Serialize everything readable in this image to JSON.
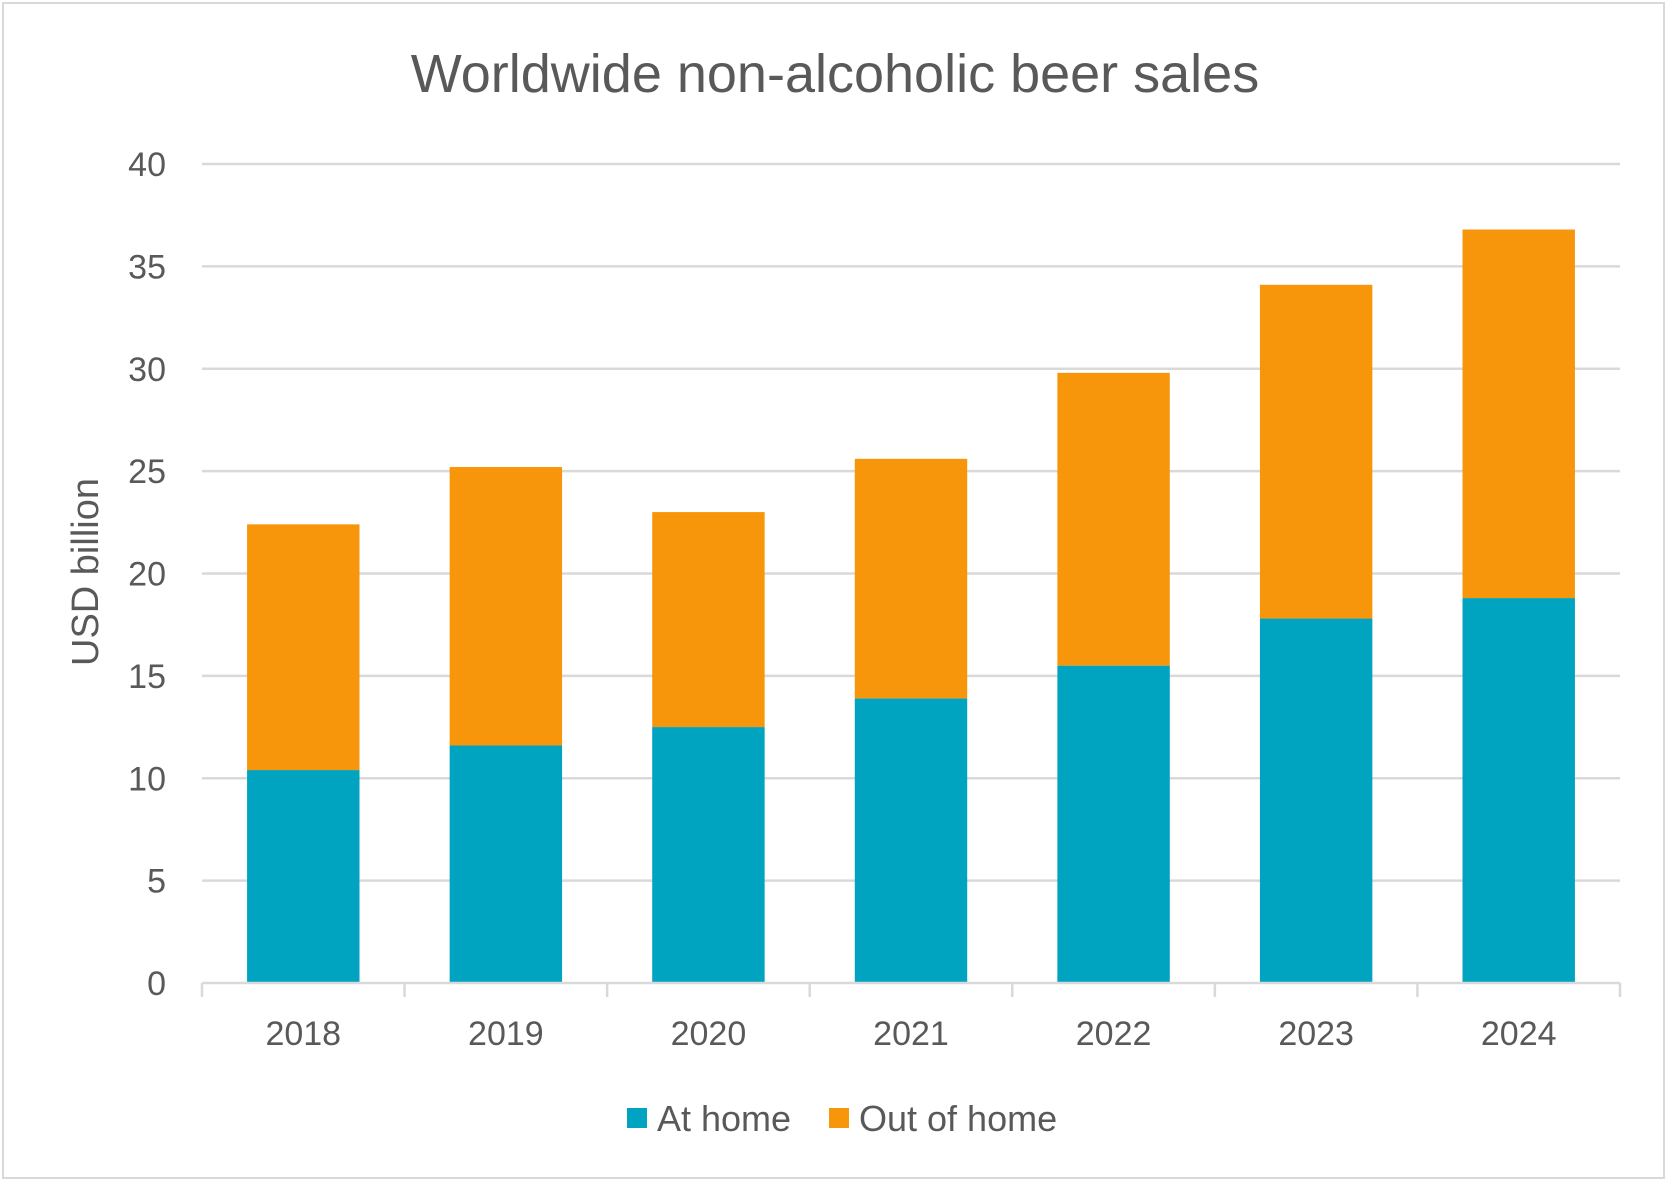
{
  "chart_data": {
    "type": "bar",
    "stacked": true,
    "title": "Worldwide non-alcoholic beer sales",
    "xlabel": "",
    "ylabel": "USD billion",
    "ylim": [
      0,
      40
    ],
    "yticks": [
      "0",
      "5",
      "10",
      "15",
      "20",
      "25",
      "30",
      "35",
      "40"
    ],
    "categories": [
      "2018",
      "2019",
      "2020",
      "2021",
      "2022",
      "2023",
      "2024"
    ],
    "series": [
      {
        "name": "At home",
        "color": "#00a3c0",
        "values": [
          10.4,
          11.6,
          12.5,
          13.9,
          15.5,
          17.8,
          18.8
        ]
      },
      {
        "name": "Out of home",
        "color": "#f7960b",
        "values": [
          12.0,
          13.6,
          10.5,
          11.7,
          14.3,
          16.3,
          18.0
        ]
      }
    ],
    "grid": true,
    "legend_position": "bottom"
  }
}
